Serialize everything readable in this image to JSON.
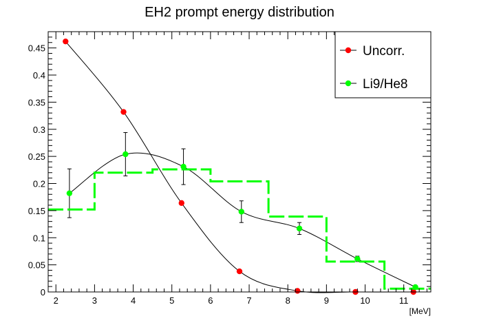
{
  "chart_data": {
    "type": "scatter",
    "title": "EH2 prompt energy distribution",
    "xlabel": "[MeV]",
    "ylabel": "",
    "xlim": [
      1.8,
      11.7
    ],
    "ylim": [
      0,
      0.48
    ],
    "x_ticks": [
      2,
      3,
      4,
      5,
      6,
      7,
      8,
      9,
      10,
      11
    ],
    "y_ticks": [
      0,
      0.05,
      0.1,
      0.15,
      0.2,
      0.25,
      0.3,
      0.35,
      0.4,
      0.45
    ],
    "x_tick_labels": [
      "2",
      "3",
      "4",
      "5",
      "6",
      "7",
      "8",
      "9",
      "10",
      "11"
    ],
    "y_tick_labels": [
      "0",
      "0.05",
      "0.1",
      "0.15",
      "0.2",
      "0.25",
      "0.3",
      "0.35",
      "0.4",
      "0.45"
    ],
    "legend_position": "top-right",
    "grid": false,
    "series": [
      {
        "name": "Uncorr.",
        "color": "#ff0000",
        "kind": "points_with_curve",
        "x": [
          2.25,
          3.75,
          5.25,
          6.75,
          8.25,
          9.75,
          11.25
        ],
        "y": [
          0.462,
          0.332,
          0.164,
          0.038,
          0.002,
          0.0,
          0.0
        ]
      },
      {
        "name": "Li9/He8",
        "color": "#00ff00",
        "kind": "points_with_errors_and_curve",
        "x": [
          2.35,
          3.8,
          5.3,
          6.8,
          8.3,
          9.8,
          11.3
        ],
        "y": [
          0.182,
          0.254,
          0.231,
          0.148,
          0.117,
          0.061,
          0.009
        ],
        "yerr": [
          0.045,
          0.04,
          0.033,
          0.02,
          0.011,
          0.005,
          0.002
        ]
      },
      {
        "name": "",
        "color": "#00ff00",
        "kind": "step_histogram",
        "bin_edges": [
          1.8,
          3.0,
          4.5,
          6.0,
          7.5,
          9.0,
          10.5,
          11.7
        ],
        "values": [
          0.152,
          0.22,
          0.226,
          0.204,
          0.139,
          0.056,
          0.006
        ]
      }
    ]
  }
}
